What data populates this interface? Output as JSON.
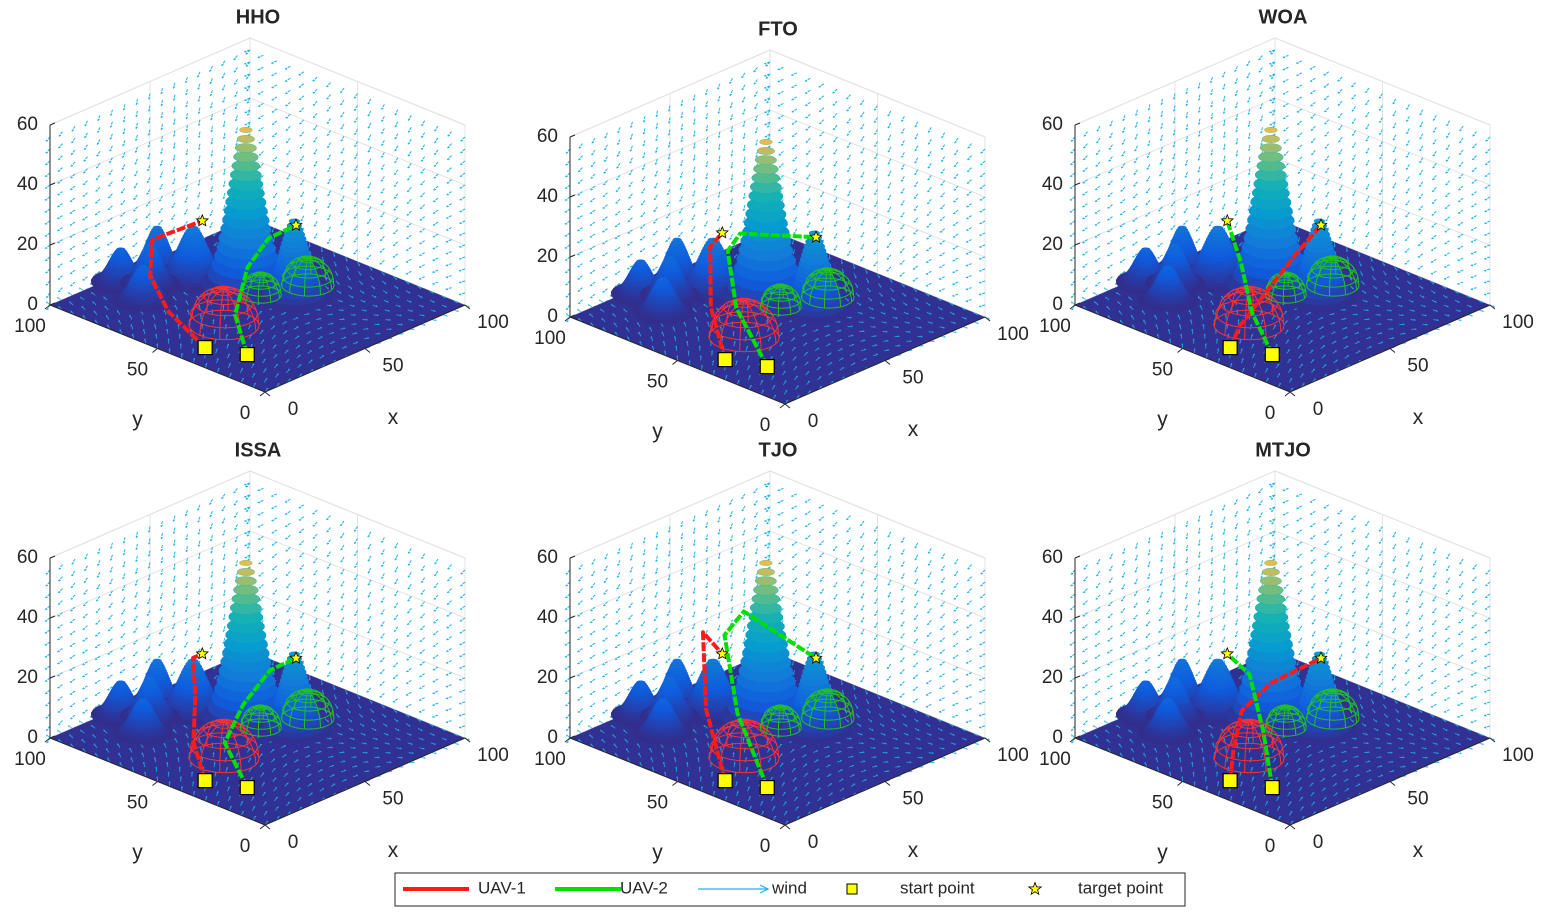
{
  "chart_data": [
    {
      "type": "surface3d",
      "title": "HHO",
      "xlabel": "x",
      "ylabel": "y",
      "xlim": [
        0,
        100
      ],
      "ylim": [
        0,
        100
      ],
      "zlim": [
        0,
        60
      ],
      "xticks": [
        0,
        50,
        100
      ],
      "yticks": [
        0,
        50,
        100
      ],
      "zticks": [
        0,
        20,
        40,
        60
      ],
      "series": [
        {
          "color": "#ff1a1a",
          "x": [
            12,
            14,
            20,
            35,
            60
          ],
          "y": [
            39,
            58,
            72,
            85,
            85
          ],
          "z": [
            0,
            6,
            12,
            16,
            15
          ]
        },
        {
          "color": "#00e000",
          "x": [
            18,
            28,
            45,
            62,
            80
          ],
          "y": [
            25,
            40,
            50,
            56,
            60
          ],
          "z": [
            0,
            6,
            14,
            17,
            15
          ]
        }
      ]
    },
    {
      "type": "surface3d",
      "title": "FTO",
      "xlabel": "x",
      "ylabel": "y",
      "xlim": [
        0,
        100
      ],
      "ylim": [
        0,
        100
      ],
      "zlim": [
        0,
        60
      ],
      "xticks": [
        0,
        50,
        100
      ],
      "yticks": [
        0,
        50,
        100
      ],
      "zticks": [
        0,
        20,
        40,
        60
      ],
      "series": [
        {
          "color": "#ff1a1a",
          "x": [
            12,
            22,
            40,
            60
          ],
          "y": [
            39,
            55,
            72,
            85
          ],
          "z": [
            0,
            10,
            20,
            15
          ]
        },
        {
          "color": "#00e000",
          "x": [
            18,
            24,
            38,
            55,
            80
          ],
          "y": [
            25,
            45,
            62,
            72,
            60
          ],
          "z": [
            0,
            12,
            22,
            20,
            15
          ]
        }
      ]
    },
    {
      "type": "surface3d",
      "title": "WOA",
      "xlabel": "x",
      "ylabel": "y",
      "xlim": [
        0,
        100
      ],
      "ylim": [
        0,
        100
      ],
      "zlim": [
        0,
        60
      ],
      "xticks": [
        0,
        50,
        100
      ],
      "yticks": [
        0,
        50,
        100
      ],
      "zticks": [
        0,
        20,
        40,
        60
      ],
      "series": [
        {
          "color": "#ff1a1a",
          "x": [
            12,
            20,
            40,
            62,
            80
          ],
          "y": [
            39,
            42,
            48,
            55,
            60
          ],
          "z": [
            0,
            4,
            8,
            12,
            15
          ]
        },
        {
          "color": "#00e000",
          "x": [
            18,
            24,
            40,
            60
          ],
          "y": [
            25,
            40,
            60,
            85
          ],
          "z": [
            0,
            8,
            14,
            15
          ]
        }
      ]
    },
    {
      "type": "surface3d",
      "title": "ISSA",
      "xlabel": "x",
      "ylabel": "y",
      "xlim": [
        0,
        100
      ],
      "ylim": [
        0,
        100
      ],
      "zlim": [
        0,
        60
      ],
      "xticks": [
        0,
        50,
        100
      ],
      "yticks": [
        0,
        50,
        100
      ],
      "zticks": [
        0,
        20,
        40,
        60
      ],
      "series": [
        {
          "color": "#ff1a1a",
          "x": [
            12,
            18,
            35,
            50,
            60
          ],
          "y": [
            39,
            50,
            65,
            80,
            85
          ],
          "z": [
            0,
            8,
            14,
            18,
            15
          ]
        },
        {
          "color": "#00e000",
          "x": [
            18,
            25,
            45,
            65,
            80
          ],
          "y": [
            25,
            42,
            52,
            58,
            60
          ],
          "z": [
            0,
            8,
            12,
            16,
            15
          ]
        }
      ]
    },
    {
      "type": "surface3d",
      "title": "TJO",
      "xlabel": "x",
      "ylabel": "y",
      "xlim": [
        0,
        100
      ],
      "ylim": [
        0,
        100
      ],
      "zlim": [
        0,
        60
      ],
      "xticks": [
        0,
        50,
        100
      ],
      "yticks": [
        0,
        50,
        100
      ],
      "zticks": [
        0,
        20,
        40,
        60
      ],
      "series": [
        {
          "color": "#ff1a1a",
          "x": [
            12,
            25,
            45,
            60
          ],
          "y": [
            39,
            60,
            80,
            85
          ],
          "z": [
            0,
            14,
            28,
            15
          ]
        },
        {
          "color": "#00e000",
          "x": [
            18,
            30,
            45,
            60,
            80
          ],
          "y": [
            25,
            50,
            70,
            75,
            60
          ],
          "z": [
            0,
            14,
            30,
            32,
            15
          ]
        }
      ]
    },
    {
      "type": "surface3d",
      "title": "MTJO",
      "xlabel": "x",
      "ylabel": "y",
      "xlim": [
        0,
        100
      ],
      "ylim": [
        0,
        100
      ],
      "zlim": [
        0,
        60
      ],
      "xticks": [
        0,
        50,
        100
      ],
      "yticks": [
        0,
        50,
        100
      ],
      "zticks": [
        0,
        20,
        40,
        60
      ],
      "series": [
        {
          "color": "#ff1a1a",
          "x": [
            12,
            20,
            35,
            55,
            80
          ],
          "y": [
            39,
            45,
            55,
            60,
            60
          ],
          "z": [
            0,
            6,
            12,
            14,
            15
          ]
        },
        {
          "color": "#00e000",
          "x": [
            18,
            35,
            55,
            60
          ],
          "y": [
            25,
            45,
            70,
            85
          ],
          "z": [
            0,
            8,
            14,
            15
          ]
        }
      ]
    }
  ],
  "terrain": {
    "peaks": [
      {
        "x": 56,
        "y": 61,
        "h": 57,
        "w": 6
      },
      {
        "x": 62,
        "y": 44,
        "h": 28,
        "w": 5
      },
      {
        "x": 50,
        "y": 80,
        "h": 18,
        "w": 5
      },
      {
        "x": 36,
        "y": 87,
        "h": 14,
        "w": 4
      },
      {
        "x": 25,
        "y": 80,
        "h": 12,
        "w": 4
      },
      {
        "x": 45,
        "y": 92,
        "h": 16,
        "w": 4
      },
      {
        "x": 30,
        "y": 95,
        "h": 12,
        "w": 4
      }
    ],
    "threats": [
      {
        "x": 30,
        "y": 47,
        "r": 12,
        "color": "#ff3030"
      },
      {
        "x": 74,
        "y": 49,
        "r": 9,
        "color": "#20c020"
      },
      {
        "x": 57,
        "y": 55,
        "r": 7,
        "color": "#20c020"
      }
    ]
  },
  "start_points": {
    "x": [
      12,
      18
    ],
    "y": [
      39,
      25
    ],
    "z": [
      0,
      0
    ],
    "color": "#ffff00"
  },
  "target_points": {
    "x": [
      60,
      80
    ],
    "y": [
      85,
      60
    ],
    "z": [
      15,
      15
    ],
    "color": "#ffff00"
  },
  "legend": {
    "entries": [
      {
        "label": "UAV-1",
        "color": "#ff1a1a",
        "marker": "line"
      },
      {
        "label": "UAV-2",
        "color": "#00e000",
        "marker": "line"
      },
      {
        "label": "wind",
        "color": "#1eb4e6",
        "marker": "arrow"
      },
      {
        "label": "start point",
        "color": "#ffff00",
        "marker": "square"
      },
      {
        "label": "target point",
        "color": "#ffff00",
        "marker": "star"
      }
    ]
  }
}
